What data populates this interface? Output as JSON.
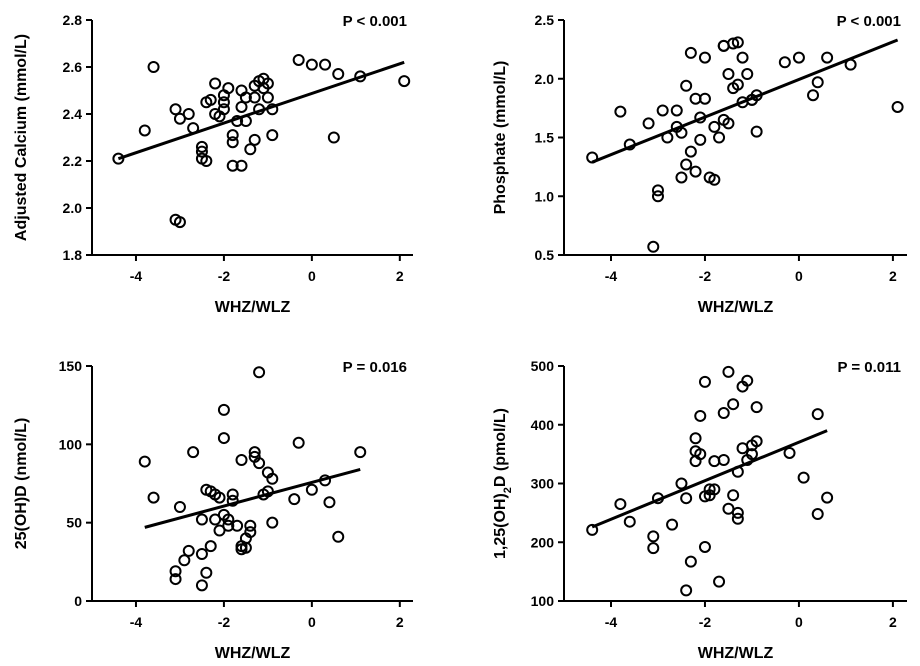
{
  "chart_data": [
    {
      "type": "scatter",
      "xlabel": "WHZ/WLZ",
      "ylabel": "Adjusted Calcium (mmol/L)",
      "annotation": "P < 0.001",
      "xlim": [
        -5,
        2.3
      ],
      "ylim": [
        1.8,
        2.8
      ],
      "xticks": [
        -4,
        -2,
        0,
        2
      ],
      "xtick_labels": [
        "-4",
        "-2",
        "0",
        "2"
      ],
      "yticks": [
        1.8,
        2.0,
        2.2,
        2.4,
        2.6,
        2.8
      ],
      "ytick_labels": [
        "1.8",
        "2.0",
        "2.2",
        "2.4",
        "2.6",
        "2.8"
      ],
      "fit_line": {
        "x": [
          -4.4,
          2.1
        ],
        "y": [
          2.21,
          2.62
        ]
      },
      "points": {
        "x": [
          -4.4,
          -3.8,
          -3.6,
          -3.1,
          -3.0,
          -2.8,
          -2.7,
          -3.1,
          -3.0,
          -2.5,
          -2.5,
          -2.4,
          -2.5,
          -2.4,
          -2.3,
          -2.2,
          -2.2,
          -2.1,
          -2.0,
          -2.0,
          -2.0,
          -1.9,
          -1.8,
          -1.8,
          -1.7,
          -1.6,
          -1.6,
          -1.5,
          -1.5,
          -1.4,
          -1.3,
          -1.3,
          -1.2,
          -1.2,
          -1.1,
          -1.1,
          -1.0,
          -1.0,
          -0.9,
          -0.9,
          -0.3,
          0.0,
          0.3,
          0.5,
          0.6,
          1.1,
          2.1,
          -1.8,
          -1.6,
          -1.3
        ],
        "y": [
          2.21,
          2.33,
          2.6,
          2.42,
          2.38,
          2.4,
          2.34,
          1.95,
          1.94,
          2.21,
          2.26,
          2.2,
          2.24,
          2.45,
          2.46,
          2.53,
          2.4,
          2.39,
          2.45,
          2.48,
          2.42,
          2.51,
          2.31,
          2.28,
          2.37,
          2.5,
          2.43,
          2.37,
          2.47,
          2.25,
          2.29,
          2.52,
          2.42,
          2.54,
          2.55,
          2.51,
          2.53,
          2.47,
          2.42,
          2.31,
          2.63,
          2.61,
          2.61,
          2.3,
          2.57,
          2.56,
          2.54,
          2.18,
          2.18,
          2.47
        ]
      }
    },
    {
      "type": "scatter",
      "xlabel": "WHZ/WLZ",
      "ylabel": "Phosphate (mmol/L)",
      "annotation": "P < 0.001",
      "xlim": [
        -5,
        2.3
      ],
      "ylim": [
        0.5,
        2.5
      ],
      "xticks": [
        -4,
        -2,
        0,
        2
      ],
      "xtick_labels": [
        "-4",
        "-2",
        "0",
        "2"
      ],
      "yticks": [
        0.5,
        1.0,
        1.5,
        2.0,
        2.5
      ],
      "ytick_labels": [
        "0.5",
        "1.0",
        "1.5",
        "2.0",
        "2.5"
      ],
      "fit_line": {
        "x": [
          -4.4,
          2.1
        ],
        "y": [
          1.29,
          2.33
        ]
      },
      "points": {
        "x": [
          -4.4,
          -3.8,
          -3.6,
          -3.2,
          -3.1,
          -3.0,
          -3.0,
          -2.9,
          -2.8,
          -2.6,
          -2.5,
          -2.5,
          -2.4,
          -2.4,
          -2.3,
          -2.3,
          -2.2,
          -2.2,
          -2.1,
          -2.1,
          -2.0,
          -2.0,
          -1.9,
          -1.8,
          -1.8,
          -1.7,
          -1.6,
          -1.6,
          -1.5,
          -1.5,
          -1.4,
          -1.4,
          -1.3,
          -1.3,
          -1.2,
          -1.2,
          -1.1,
          -1.0,
          -1.0,
          -0.9,
          -0.9,
          -0.3,
          0.0,
          0.3,
          0.4,
          0.6,
          1.1,
          2.1,
          -2.6,
          -1.6
        ],
        "y": [
          1.33,
          1.72,
          1.44,
          1.62,
          0.57,
          1.05,
          1.0,
          1.73,
          1.5,
          1.73,
          1.16,
          1.54,
          1.27,
          1.94,
          1.38,
          2.22,
          1.83,
          1.21,
          1.67,
          1.48,
          2.18,
          1.83,
          1.16,
          1.59,
          1.14,
          1.5,
          2.28,
          1.65,
          2.04,
          1.62,
          2.3,
          1.92,
          1.95,
          2.31,
          1.8,
          2.18,
          2.04,
          1.82,
          1.82,
          1.55,
          1.86,
          2.14,
          2.18,
          1.86,
          1.97,
          2.18,
          2.12,
          1.76,
          1.59,
          2.28
        ]
      }
    },
    {
      "type": "scatter",
      "xlabel": "WHZ/WLZ",
      "ylabel": "25(OH)D (nmol/L)",
      "annotation": "P = 0.016",
      "xlim": [
        -5,
        2.3
      ],
      "ylim": [
        0,
        150
      ],
      "xticks": [
        -4,
        -2,
        0,
        2
      ],
      "xtick_labels": [
        "-4",
        "-2",
        "0",
        "2"
      ],
      "yticks": [
        0,
        50,
        100,
        150
      ],
      "ytick_labels": [
        "0",
        "50",
        "100",
        "150"
      ],
      "fit_line": {
        "x": [
          -3.8,
          1.1
        ],
        "y": [
          47,
          84
        ]
      },
      "points": {
        "x": [
          -3.8,
          -3.6,
          -3.1,
          -3.1,
          -3.0,
          -2.9,
          -2.8,
          -2.7,
          -2.5,
          -2.5,
          -2.5,
          -2.4,
          -2.4,
          -2.3,
          -2.3,
          -2.2,
          -2.2,
          -2.1,
          -2.1,
          -2.0,
          -2.0,
          -2.0,
          -1.9,
          -1.9,
          -1.8,
          -1.8,
          -1.7,
          -1.6,
          -1.6,
          -1.5,
          -1.5,
          -1.4,
          -1.4,
          -1.3,
          -1.3,
          -1.2,
          -1.2,
          -1.1,
          -1.0,
          -1.0,
          -0.9,
          -0.9,
          -0.4,
          -0.3,
          0.0,
          0.3,
          0.4,
          0.6,
          1.1,
          -1.6
        ],
        "y": [
          89,
          66,
          19,
          14,
          60,
          26,
          32,
          95,
          30,
          52,
          10,
          71,
          18,
          70,
          35,
          68,
          52,
          66,
          45,
          122,
          104,
          55,
          52,
          48,
          68,
          64,
          48,
          90,
          33,
          40,
          34,
          48,
          44,
          92,
          95,
          146,
          88,
          68,
          70,
          82,
          78,
          50,
          65,
          101,
          71,
          77,
          63,
          41,
          95,
          35
        ]
      }
    },
    {
      "type": "scatter",
      "xlabel": "WHZ/WLZ",
      "ylabel": "1,25(OH)2D (pmol/L)",
      "annotation": "P = 0.011",
      "xlim": [
        -5,
        2.3
      ],
      "ylim": [
        100,
        500
      ],
      "xticks": [
        -4,
        -2,
        0,
        2
      ],
      "xtick_labels": [
        "-4",
        "-2",
        "0",
        "2"
      ],
      "yticks": [
        100,
        200,
        300,
        400,
        500
      ],
      "ytick_labels": [
        "100",
        "200",
        "300",
        "400",
        "500"
      ],
      "fit_line": {
        "x": [
          -4.4,
          0.6
        ],
        "y": [
          226,
          390
        ]
      },
      "points": {
        "x": [
          -4.4,
          -3.8,
          -3.6,
          -3.1,
          -3.1,
          -3.0,
          -2.7,
          -2.5,
          -2.4,
          -2.3,
          -2.2,
          -2.2,
          -2.2,
          -2.1,
          -2.1,
          -2.0,
          -2.0,
          -2.0,
          -1.9,
          -1.9,
          -1.8,
          -1.7,
          -1.6,
          -1.6,
          -1.5,
          -1.5,
          -1.4,
          -1.4,
          -1.3,
          -1.3,
          -1.2,
          -1.2,
          -1.1,
          -1.1,
          -1.0,
          -1.0,
          -0.9,
          -0.9,
          -0.2,
          0.1,
          0.4,
          0.4,
          0.6,
          -2.4,
          -1.8,
          -1.3
        ],
        "y": [
          221,
          265,
          235,
          190,
          210,
          275,
          230,
          300,
          118,
          167,
          377,
          355,
          338,
          350,
          415,
          192,
          473,
          278,
          280,
          290,
          338,
          133,
          340,
          420,
          257,
          490,
          435,
          280,
          250,
          240,
          465,
          360,
          475,
          340,
          365,
          350,
          430,
          372,
          352,
          310,
          248,
          418,
          276,
          275,
          290,
          320
        ]
      }
    }
  ]
}
